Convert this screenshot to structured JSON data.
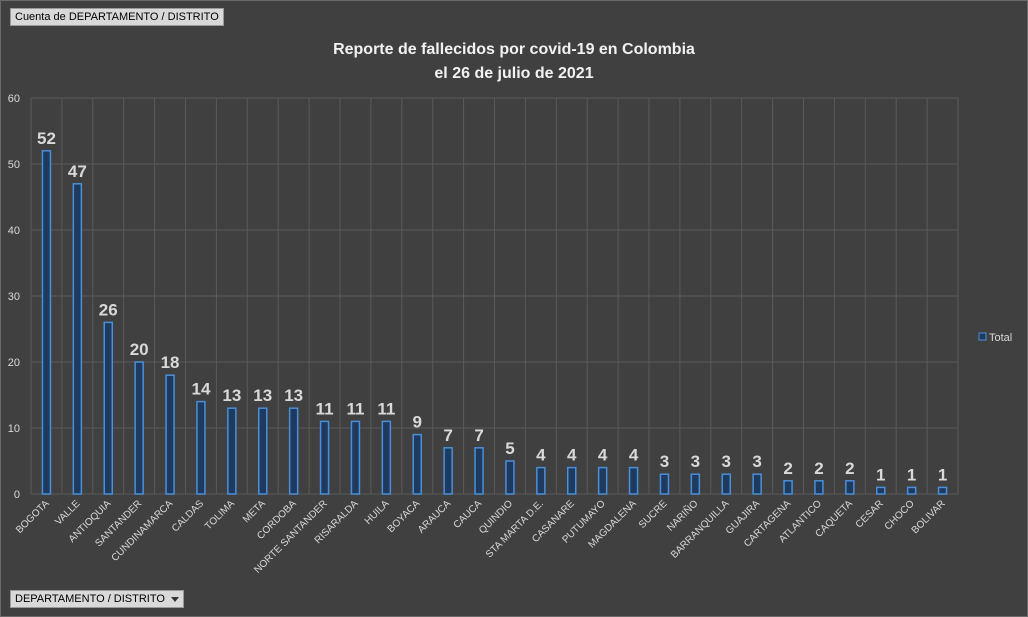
{
  "field_buttons": {
    "top": "Cuenta de DEPARTAMENTO / DISTRITO",
    "bottom": "DEPARTAMENTO / DISTRITO"
  },
  "colors": {
    "bar_fill": "#1f3a5f",
    "bar_stroke": "#4a8fd8",
    "background": "#404040",
    "grid": "#5a5a5a"
  },
  "chart_data": {
    "type": "bar",
    "title_lines": [
      "Reporte de fallecidos por covid-19 en Colombia",
      "el 26 de julio de 2021"
    ],
    "categories": [
      "BOGOTA",
      "VALLE",
      "ANTIOQUIA",
      "SANTANDER",
      "CUNDINAMARCA",
      "CALDAS",
      "TOLIMA",
      "META",
      "CORDOBA",
      "NORTE SANTANDER",
      "RISARALDA",
      "HUILA",
      "BOYACA",
      "ARAUCA",
      "CAUCA",
      "QUINDIO",
      "STA MARTA D.E.",
      "CASANARE",
      "PUTUMAYO",
      "MAGDALENA",
      "SUCRE",
      "NARIÑO",
      "BARRANQUILLA",
      "GUAJIRA",
      "CARTAGENA",
      "ATLANTICO",
      "CAQUETA",
      "CESAR",
      "CHOCO",
      "BOLIVAR"
    ],
    "series": [
      {
        "name": "Total",
        "values": [
          52,
          47,
          26,
          20,
          18,
          14,
          13,
          13,
          13,
          11,
          11,
          11,
          9,
          7,
          7,
          5,
          4,
          4,
          4,
          4,
          3,
          3,
          3,
          3,
          2,
          2,
          2,
          1,
          1,
          1
        ]
      }
    ],
    "ylim": [
      0,
      60
    ],
    "yticks": [
      0,
      10,
      20,
      30,
      40,
      50,
      60
    ],
    "grid": true,
    "legend_position": "right"
  }
}
